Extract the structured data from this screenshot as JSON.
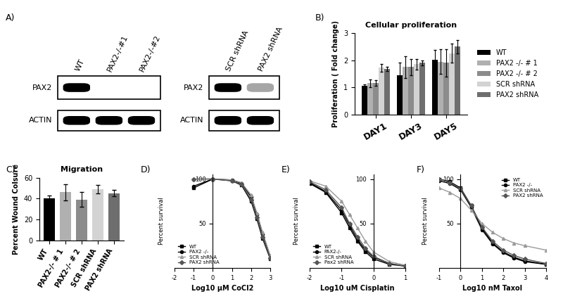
{
  "chart_data": [
    {
      "type": "blot",
      "label": "A)",
      "blots": [
        {
          "lanes": [
            "WT",
            "PAX2-/-#1",
            "PAX2-/-#2"
          ],
          "rows": [
            {
              "name": "PAX2",
              "intensity": [
                1,
                0,
                0
              ]
            },
            {
              "name": "ACTIN",
              "intensity": [
                1,
                1,
                1
              ]
            }
          ]
        },
        {
          "lanes": [
            "SCR shRNA",
            "PAX2 shRNA"
          ],
          "rows": [
            {
              "name": "PAX2",
              "intensity": [
                1,
                0.35
              ]
            },
            {
              "name": "ACTIN",
              "intensity": [
                1,
                1
              ]
            }
          ]
        }
      ]
    },
    {
      "type": "bar",
      "label": "B)",
      "title": "Cellular proliferation",
      "y_label": "Proliferation ( Fold change)",
      "categories": [
        "DAY1",
        "DAY3",
        "DAY5"
      ],
      "series": [
        {
          "name": "WT",
          "color": "#000000",
          "values": [
            1.05,
            1.45,
            2.02
          ],
          "errors": [
            0.05,
            0.45,
            0.35
          ]
        },
        {
          "name": "PAX2 -/- # 1",
          "color": "#b0b0b0",
          "values": [
            1.15,
            1.75,
            1.95
          ],
          "errors": [
            0.15,
            0.4,
            0.45
          ]
        },
        {
          "name": "PAX2 -/- # 2",
          "color": "#8c8c8c",
          "values": [
            1.15,
            1.75,
            1.9
          ],
          "errors": [
            0.1,
            0.3,
            0.5
          ]
        },
        {
          "name": "SCR shRNA",
          "color": "#d3d3d3",
          "values": [
            1.72,
            1.85,
            2.25
          ],
          "errors": [
            0.15,
            0.2,
            0.35
          ]
        },
        {
          "name": "PAX2 shRNA",
          "color": "#6e6e6e",
          "values": [
            1.68,
            1.9,
            2.5
          ],
          "errors": [
            0.08,
            0.1,
            0.25
          ]
        }
      ],
      "ylim": [
        0,
        3
      ],
      "yticks": [
        0,
        1,
        2,
        3
      ],
      "legend": "center left"
    },
    {
      "type": "bar",
      "label": "C)",
      "title": "Migration",
      "y_label": "Percent Wound Colsure",
      "categories": [
        "WT",
        "PAX2-/- # 1",
        "PAX2-/- # 2",
        "SCR shRNA",
        "PAX2 shRNA"
      ],
      "values": [
        40,
        46,
        39,
        49,
        45
      ],
      "errors": [
        3,
        8,
        7,
        4,
        3
      ],
      "colors": [
        "#000000",
        "#b0b0b0",
        "#8c8c8c",
        "#d3d3d3",
        "#6e6e6e"
      ],
      "ylim": [
        0,
        60
      ],
      "yticks": [
        0,
        20,
        40,
        60
      ]
    },
    {
      "type": "line",
      "label": "D)",
      "x_label": "Log10 µM CoCl2",
      "y_label": "Percent survival",
      "x": [
        -1,
        0,
        1,
        1.5,
        2,
        2.3,
        2.6,
        3
      ],
      "series": [
        {
          "name": "WT",
          "color": "#000000",
          "marker": "square",
          "line_style": "solid",
          "values": [
            90,
            100,
            98,
            93,
            75,
            55,
            33,
            10
          ]
        },
        {
          "name": "PAX2 -/-",
          "color": "#000000",
          "marker": "circle",
          "line_style": "solid",
          "values": [
            92,
            100,
            99,
            95,
            80,
            60,
            38,
            12
          ]
        },
        {
          "name": "SCR shRNA",
          "color": "#9a9a9a",
          "marker": "triangle",
          "line_style": "solid",
          "values": [
            100,
            100,
            99,
            96,
            82,
            62,
            40,
            14
          ]
        },
        {
          "name": "PAX2 shRNA",
          "color": "#555555",
          "marker": "diamond",
          "line_style": "solid",
          "values": [
            100,
            100,
            98,
            94,
            77,
            57,
            35,
            11
          ]
        }
      ],
      "xlim": [
        -2,
        3
      ],
      "xticks": [
        -2,
        -1,
        0,
        1,
        2,
        3
      ],
      "ylim": [
        0,
        105
      ],
      "yticks": [
        50,
        100
      ],
      "legend": "lower left"
    },
    {
      "type": "line",
      "label": "E)",
      "x_label": "Log10 uM Cisplatin",
      "y_label": "Percent survival",
      "x": [
        -2,
        -1.5,
        -1,
        -0.75,
        -0.5,
        -0.25,
        0,
        0.5,
        1
      ],
      "series": [
        {
          "name": "WT",
          "color": "#000000",
          "marker": "square",
          "line_style": "solid",
          "values": [
            95,
            85,
            62,
            45,
            30,
            18,
            10,
            4,
            2
          ]
        },
        {
          "name": "PAX2-/-",
          "color": "#000000",
          "marker": "circle",
          "line_style": "solid",
          "values": [
            96,
            86,
            65,
            48,
            32,
            20,
            12,
            5,
            2
          ]
        },
        {
          "name": "SCR shRNA",
          "color": "#9a9a9a",
          "marker": "triangle",
          "line_style": "solid",
          "values": [
            98,
            92,
            75,
            60,
            45,
            30,
            18,
            7,
            3
          ]
        },
        {
          "name": "Pax2 shRNA",
          "color": "#555555",
          "marker": "diamond",
          "line_style": "solid",
          "values": [
            97,
            88,
            68,
            50,
            35,
            22,
            13,
            5,
            2
          ]
        }
      ],
      "xlim": [
        -2,
        1
      ],
      "xticks": [
        -2,
        -1,
        0,
        1
      ],
      "ylim": [
        0,
        105
      ],
      "yticks": [
        50,
        100
      ],
      "legend": "lower left"
    },
    {
      "type": "line",
      "label": "F)",
      "x_label": "Log10 nM Taxol",
      "y_label": "Percent survival",
      "x": [
        -1,
        -0.5,
        0,
        0.5,
        1,
        1.5,
        2,
        2.5,
        3,
        4
      ],
      "series": [
        {
          "name": "WT",
          "color": "#000000",
          "marker": "square",
          "line_style": "solid",
          "values": [
            100,
            97,
            90,
            70,
            45,
            28,
            18,
            12,
            8,
            4
          ]
        },
        {
          "name": "PAX2 -/-",
          "color": "#000000",
          "marker": "circle",
          "line_style": "solid",
          "values": [
            98,
            95,
            88,
            68,
            43,
            27,
            17,
            11,
            7,
            4
          ]
        },
        {
          "name": "SCR shRNA",
          "color": "#9a9a9a",
          "marker": "triangle",
          "line_style": "solid",
          "values": [
            90,
            85,
            78,
            65,
            50,
            40,
            33,
            28,
            25,
            20
          ]
        },
        {
          "name": "PAX2 shRNA",
          "color": "#555555",
          "marker": "diamond",
          "line_style": "solid",
          "values": [
            100,
            96,
            89,
            70,
            46,
            30,
            20,
            14,
            10,
            5
          ]
        }
      ],
      "xlim": [
        -1,
        4
      ],
      "xticks": [
        -1,
        0,
        1,
        2,
        3,
        4
      ],
      "ylim": [
        0,
        105
      ],
      "yticks": [
        50,
        100
      ],
      "legend": "upper right"
    }
  ]
}
